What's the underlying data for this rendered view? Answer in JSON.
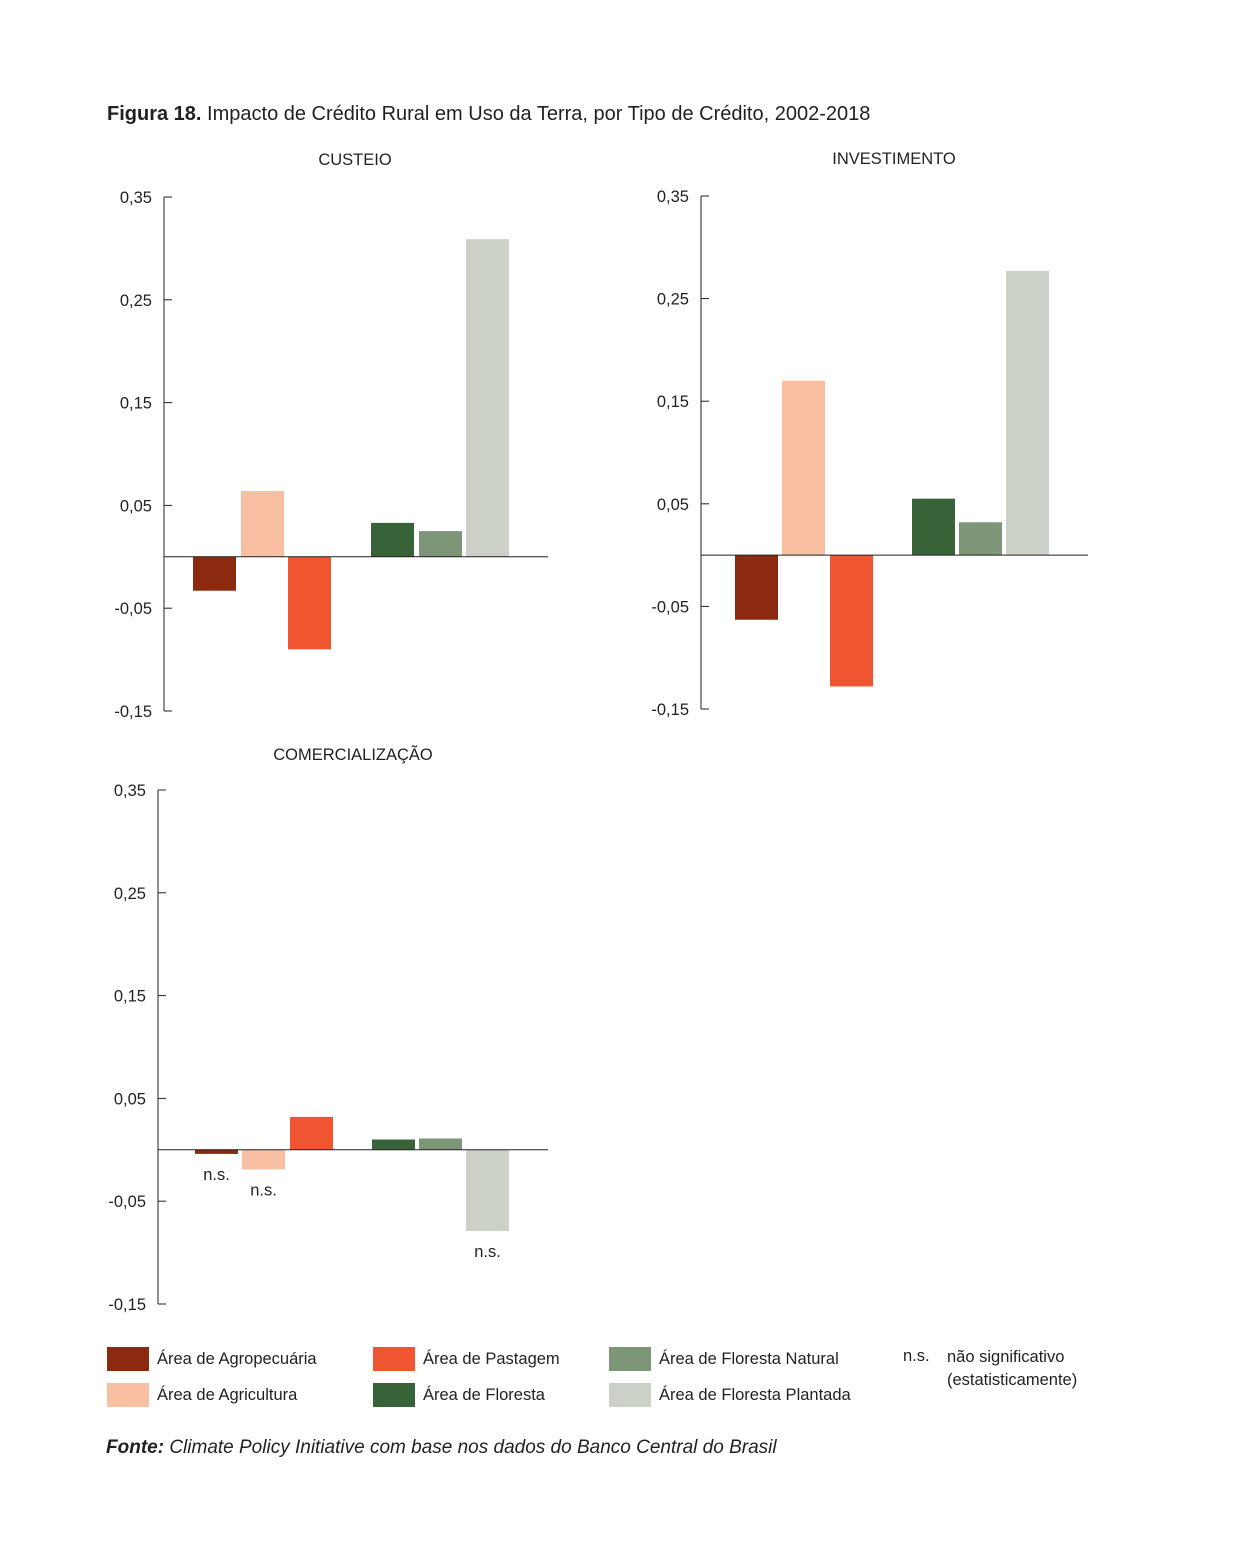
{
  "figure": {
    "label": "Figura 18.",
    "title": "Impacto de Crédito Rural em Uso da Terra, por Tipo de Crédito, 2002-2018"
  },
  "chart_data": [
    {
      "type": "bar",
      "title": "CUSTEIO",
      "ylim": [
        -0.15,
        0.35
      ],
      "yticks": [
        0.35,
        0.25,
        0.15,
        0.05,
        -0.05,
        -0.15
      ],
      "ytick_labels": [
        "0,35",
        "0,25",
        "0,15",
        "0,05",
        "-0,05",
        "-0,15"
      ],
      "categories": [
        "Área de Agropecuária",
        "Área de Agricultura",
        "Área de Pastagem",
        "Área de Floresta",
        "Área de Floresta Natural",
        "Área de Floresta Plantada"
      ],
      "values": [
        -0.033,
        0.064,
        -0.09,
        0.033,
        0.025,
        0.309
      ],
      "annotations": [
        "",
        "",
        "",
        "",
        "",
        ""
      ]
    },
    {
      "type": "bar",
      "title": "INVESTIMENTO",
      "ylim": [
        -0.15,
        0.35
      ],
      "yticks": [
        0.35,
        0.25,
        0.15,
        0.05,
        -0.05,
        -0.15
      ],
      "ytick_labels": [
        "0,35",
        "0,25",
        "0,15",
        "0,05",
        "-0,05",
        "-0,15"
      ],
      "categories": [
        "Área de Agropecuária",
        "Área de Agricultura",
        "Área de Pastagem",
        "Área de Floresta",
        "Área de Floresta Natural",
        "Área de Floresta Plantada"
      ],
      "values": [
        -0.063,
        0.17,
        -0.128,
        0.055,
        0.032,
        0.277
      ],
      "annotations": [
        "",
        "",
        "",
        "",
        "",
        ""
      ]
    },
    {
      "type": "bar",
      "title": "COMERCIALIZAÇÃO",
      "ylim": [
        -0.15,
        0.35
      ],
      "yticks": [
        0.35,
        0.25,
        0.15,
        0.05,
        -0.05,
        -0.15
      ],
      "ytick_labels": [
        "0,35",
        "0,25",
        "0,15",
        "0,05",
        "-0,05",
        "-0,15"
      ],
      "categories": [
        "Área de Agropecuária",
        "Área de Agricultura",
        "Área de Pastagem",
        "Área de Floresta",
        "Área de Floresta Natural",
        "Área de Floresta Plantada"
      ],
      "values": [
        -0.004,
        -0.019,
        0.032,
        0.01,
        0.011,
        -0.079
      ],
      "annotations": [
        "n.s.",
        "n.s.",
        "",
        "",
        "",
        "n.s."
      ]
    }
  ],
  "series_colors": [
    "#8b2a0e",
    "#f9bfa2",
    "#ef5530",
    "#386339",
    "#7e9678",
    "#cbd1c6"
  ],
  "legend": {
    "items": [
      {
        "label": "Área de Agropecuária",
        "color": "#8b2a0e"
      },
      {
        "label": "Área de Agricultura",
        "color": "#f9bfa2"
      },
      {
        "label": "Área de Pastagem",
        "color": "#ef5530"
      },
      {
        "label": "Área de Floresta",
        "color": "#386339"
      },
      {
        "label": "Área de Floresta Natural",
        "color": "#7e9678"
      },
      {
        "label": "Área de Floresta Plantada",
        "color": "#cbd1c6"
      }
    ],
    "ns_abbr": "n.s.",
    "ns_desc_line1": "não significativo",
    "ns_desc_line2": "(estatisticamente)"
  },
  "source": {
    "label": "Fonte:",
    "text": "Climate Policy Initiative com base nos dados do Banco Central do Brasil"
  }
}
